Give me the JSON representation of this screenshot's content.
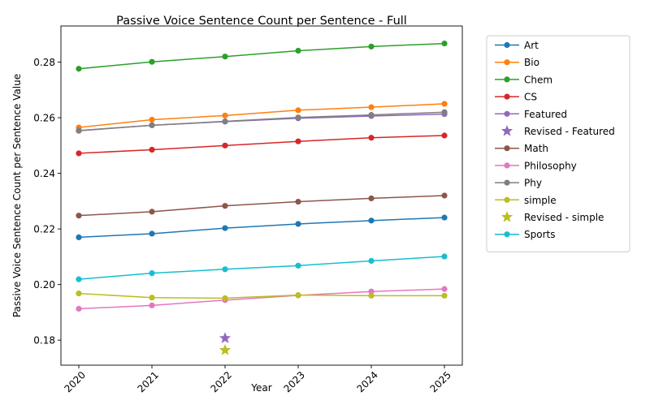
{
  "chart_data": {
    "type": "line",
    "title": "Passive Voice Sentence Count per Sentence - Full",
    "xlabel": "Year",
    "ylabel": "Passive Voice Sentence Count per Sentence Value",
    "x": [
      "2020",
      "2021",
      "2022",
      "2023",
      "2024",
      "2025"
    ],
    "ylim": [
      0.171,
      0.293
    ],
    "yticks": [
      "0.18",
      "0.20",
      "0.22",
      "0.24",
      "0.26",
      "0.28"
    ],
    "grid": false,
    "legend_position": "outside-right",
    "legend": [
      {
        "label": "Art",
        "color": "#1f77b4",
        "marker": "circle"
      },
      {
        "label": "Bio",
        "color": "#ff7f0e",
        "marker": "circle"
      },
      {
        "label": "Chem",
        "color": "#2ca02c",
        "marker": "circle"
      },
      {
        "label": "CS",
        "color": "#d62728",
        "marker": "circle"
      },
      {
        "label": "Featured",
        "color": "#9467bd",
        "marker": "circle"
      },
      {
        "label": "Revised - Featured",
        "color": "#9467bd",
        "marker": "star"
      },
      {
        "label": "Math",
        "color": "#8c564b",
        "marker": "circle"
      },
      {
        "label": "Philosophy",
        "color": "#e377c2",
        "marker": "circle"
      },
      {
        "label": "Phy",
        "color": "#7f7f7f",
        "marker": "circle"
      },
      {
        "label": "simple",
        "color": "#bcbd22",
        "marker": "circle"
      },
      {
        "label": "Revised - simple",
        "color": "#bcbd22",
        "marker": "star"
      },
      {
        "label": "Sports",
        "color": "#17becf",
        "marker": "circle"
      }
    ],
    "series": [
      {
        "name": "Art",
        "color": "#1f77b4",
        "values": [
          0.217,
          0.2183,
          0.2203,
          0.2218,
          0.223,
          0.2241
        ]
      },
      {
        "name": "Bio",
        "color": "#ff7f0e",
        "values": [
          0.2565,
          0.2593,
          0.2608,
          0.2627,
          0.2638,
          0.265
        ]
      },
      {
        "name": "Chem",
        "color": "#2ca02c",
        "values": [
          0.2776,
          0.2801,
          0.282,
          0.2841,
          0.2856,
          0.2867
        ]
      },
      {
        "name": "CS",
        "color": "#d62728",
        "values": [
          0.2472,
          0.2485,
          0.25,
          0.2515,
          0.2528,
          0.2536
        ]
      },
      {
        "name": "Featured",
        "color": "#9467bd",
        "values": [
          0.2553,
          0.2573,
          0.2586,
          0.2598,
          0.2606,
          0.2613
        ]
      },
      {
        "name": "Math",
        "color": "#8c564b",
        "values": [
          0.2248,
          0.2262,
          0.2283,
          0.2298,
          0.231,
          0.232
        ]
      },
      {
        "name": "Philosophy",
        "color": "#e377c2",
        "values": [
          0.1913,
          0.1925,
          0.1944,
          0.1961,
          0.1975,
          0.1984
        ]
      },
      {
        "name": "Phy",
        "color": "#7f7f7f",
        "values": [
          0.2554,
          0.2573,
          0.2587,
          0.2601,
          0.261,
          0.262
        ]
      },
      {
        "name": "simple",
        "color": "#bcbd22",
        "values": [
          0.1968,
          0.1953,
          0.1951,
          0.1962,
          0.196,
          0.196
        ]
      },
      {
        "name": "Sports",
        "color": "#17becf",
        "values": [
          0.2019,
          0.2041,
          0.2055,
          0.2068,
          0.2085,
          0.2101
        ]
      }
    ],
    "revised_points": [
      {
        "name": "Revised - Featured",
        "color": "#9467bd",
        "x": "2022",
        "y": 0.1807
      },
      {
        "name": "Revised - simple",
        "color": "#bcbd22",
        "x": "2022",
        "y": 0.1764
      }
    ]
  }
}
